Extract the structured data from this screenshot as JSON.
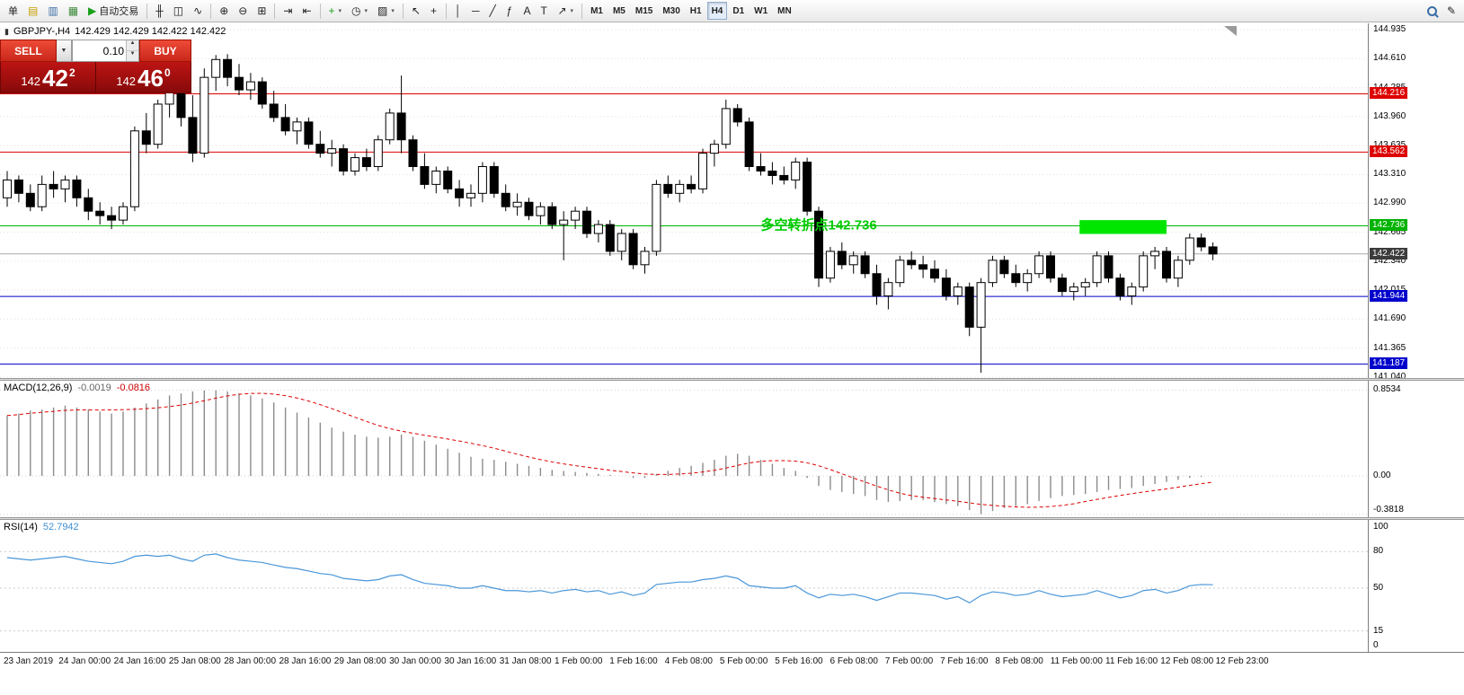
{
  "toolbar": {
    "items": [
      {
        "name": "new-order-button",
        "label": "单"
      },
      {
        "name": "market-watch-button",
        "glyph": "▤",
        "glyph_color": "#c8a000"
      },
      {
        "name": "data-window-button",
        "glyph": "▥",
        "glyph_color": "#3a6ea5"
      },
      {
        "name": "navigator-button",
        "glyph": "▦",
        "glyph_color": "#3a8a3a"
      },
      {
        "name": "autotrading-button",
        "glyph": "▶",
        "glyph_color": "#18a018",
        "label": "自动交易"
      },
      {
        "sep": true
      },
      {
        "name": "bar-chart-button",
        "glyph": "╫"
      },
      {
        "name": "candlestick-chart-button",
        "glyph": "◫"
      },
      {
        "name": "line-chart-button",
        "glyph": "∿"
      },
      {
        "sep": true
      },
      {
        "name": "zoom-in-button",
        "glyph": "⊕"
      },
      {
        "name": "zoom-out-button",
        "glyph": "⊖"
      },
      {
        "name": "tile-windows-button",
        "glyph": "⊞"
      },
      {
        "sep": true
      },
      {
        "name": "auto-scroll-button",
        "glyph": "⇥"
      },
      {
        "name": "chart-shift-button",
        "glyph": "⇤"
      },
      {
        "sep": true
      },
      {
        "name": "indicators-button",
        "glyph": "+",
        "glyph_color": "#18a018",
        "dropdown": true
      },
      {
        "name": "periods-button",
        "glyph": "◷",
        "dropdown": true
      },
      {
        "name": "templates-button",
        "glyph": "▨",
        "dropdown": true
      },
      {
        "sep": true
      },
      {
        "name": "cursor-button",
        "glyph": "↖"
      },
      {
        "name": "crosshair-button",
        "glyph": "+"
      },
      {
        "sep": true
      },
      {
        "name": "vertical-line-button",
        "glyph": "│"
      },
      {
        "name": "horizontal-line-button",
        "glyph": "─"
      },
      {
        "name": "trendline-button",
        "glyph": "╱"
      },
      {
        "name": "fibonacci-button",
        "glyph": "ƒ"
      },
      {
        "name": "text-button",
        "glyph": "A"
      },
      {
        "name": "label-button",
        "glyph": "T"
      },
      {
        "name": "arrows-button",
        "glyph": "↗",
        "dropdown": true
      },
      {
        "sep": true
      },
      {
        "name": "timeframe-m1-button",
        "label": "M1",
        "tf": true
      },
      {
        "name": "timeframe-m5-button",
        "label": "M5",
        "tf": true
      },
      {
        "name": "timeframe-m15-button",
        "label": "M15",
        "tf": true
      },
      {
        "name": "timeframe-m30-button",
        "label": "M30",
        "tf": true
      },
      {
        "name": "timeframe-h1-button",
        "label": "H1",
        "tf": true
      },
      {
        "name": "timeframe-h4-button",
        "label": "H4",
        "tf": true,
        "active": true
      },
      {
        "name": "timeframe-d1-button",
        "label": "D1",
        "tf": true
      },
      {
        "name": "timeframe-w1-button",
        "label": "W1",
        "tf": true
      },
      {
        "name": "timeframe-mn-button",
        "label": "MN",
        "tf": true
      },
      {
        "spacer": true
      },
      {
        "name": "search-button",
        "icon": "magnifier"
      },
      {
        "name": "edit-button",
        "glyph": "✎"
      }
    ]
  },
  "quote_line": {
    "icon": "▮",
    "symbol_period": "GBPJPY-,H4",
    "ohlc": "142.429 142.429 142.422 142.422"
  },
  "trade_panel": {
    "sell_label": "SELL",
    "buy_label": "BUY",
    "dropdown_icon": "▼",
    "lot_value": "0.10",
    "spin_up": "▲",
    "spin_down": "▼",
    "sell_price": {
      "prefix": "142",
      "big": "42",
      "sup": "2"
    },
    "buy_price": {
      "prefix": "142",
      "big": "46",
      "sup": "0"
    }
  },
  "macd_panel": {
    "title": "MACD(12,26,9)",
    "value_main": "-0.0019",
    "value_signal": "-0.0816"
  },
  "rsi_panel": {
    "title": "RSI(14)",
    "value": "52.7942"
  },
  "chart_data": {
    "type": "candlestick",
    "symbol": "GBPJPY-",
    "period": "H4",
    "price_range": {
      "min": 141.04,
      "max": 144.935
    },
    "price_ticks": [
      "144.935",
      "144.610",
      "144.285",
      "143.960",
      "143.635",
      "143.310",
      "142.990",
      "142.665",
      "142.340",
      "142.015",
      "141.690",
      "141.365",
      "141.040"
    ],
    "candles": [
      [
        143.05,
        143.35,
        142.95,
        143.25
      ],
      [
        143.25,
        143.3,
        143.0,
        143.1
      ],
      [
        143.1,
        143.2,
        142.9,
        142.95
      ],
      [
        142.95,
        143.3,
        142.9,
        143.2
      ],
      [
        143.2,
        143.35,
        143.05,
        143.15
      ],
      [
        143.15,
        143.3,
        143.0,
        143.25
      ],
      [
        143.25,
        143.3,
        142.95,
        143.05
      ],
      [
        143.05,
        143.15,
        142.8,
        142.9
      ],
      [
        142.9,
        143.0,
        142.75,
        142.85
      ],
      [
        142.85,
        142.95,
        142.7,
        142.8
      ],
      [
        142.8,
        143.0,
        142.75,
        142.95
      ],
      [
        142.95,
        143.85,
        142.9,
        143.8
      ],
      [
        143.8,
        144.0,
        143.55,
        143.65
      ],
      [
        143.65,
        144.15,
        143.6,
        144.1
      ],
      [
        144.1,
        144.3,
        143.95,
        144.25
      ],
      [
        144.25,
        144.45,
        143.85,
        143.95
      ],
      [
        143.95,
        144.2,
        143.45,
        143.55
      ],
      [
        143.55,
        144.5,
        143.5,
        144.4
      ],
      [
        144.4,
        144.65,
        144.25,
        144.6
      ],
      [
        144.6,
        144.66,
        144.3,
        144.4
      ],
      [
        144.4,
        144.55,
        144.2,
        144.26
      ],
      [
        144.26,
        144.45,
        144.15,
        144.35
      ],
      [
        144.35,
        144.4,
        144.05,
        144.1
      ],
      [
        144.1,
        144.25,
        143.9,
        143.95
      ],
      [
        143.95,
        144.1,
        143.75,
        143.8
      ],
      [
        143.8,
        143.95,
        143.65,
        143.9
      ],
      [
        143.9,
        143.95,
        143.6,
        143.65
      ],
      [
        143.65,
        143.8,
        143.5,
        143.55
      ],
      [
        143.55,
        143.7,
        143.4,
        143.6
      ],
      [
        143.6,
        143.65,
        143.3,
        143.35
      ],
      [
        143.35,
        143.55,
        143.3,
        143.5
      ],
      [
        143.5,
        143.6,
        143.35,
        143.4
      ],
      [
        143.4,
        143.75,
        143.35,
        143.7
      ],
      [
        143.7,
        144.05,
        143.65,
        144.0
      ],
      [
        144.0,
        144.42,
        143.55,
        143.7
      ],
      [
        143.7,
        143.75,
        143.35,
        143.4
      ],
      [
        143.4,
        143.55,
        143.15,
        143.2
      ],
      [
        143.2,
        143.4,
        143.1,
        143.35
      ],
      [
        143.35,
        143.4,
        143.1,
        143.15
      ],
      [
        143.15,
        143.25,
        142.95,
        143.05
      ],
      [
        143.05,
        143.2,
        142.95,
        143.1
      ],
      [
        143.1,
        143.45,
        143.0,
        143.4
      ],
      [
        143.4,
        143.45,
        143.05,
        143.1
      ],
      [
        143.1,
        143.2,
        142.9,
        142.95
      ],
      [
        142.95,
        143.1,
        142.85,
        143.0
      ],
      [
        143.0,
        143.05,
        142.8,
        142.85
      ],
      [
        142.85,
        143.0,
        142.75,
        142.95
      ],
      [
        142.95,
        143.0,
        142.7,
        142.75
      ],
      [
        142.75,
        142.9,
        142.35,
        142.8
      ],
      [
        142.8,
        142.95,
        142.7,
        142.9
      ],
      [
        142.9,
        142.95,
        142.6,
        142.65
      ],
      [
        142.65,
        142.8,
        142.55,
        142.75
      ],
      [
        142.75,
        142.8,
        142.4,
        142.45
      ],
      [
        142.45,
        142.7,
        142.35,
        142.65
      ],
      [
        142.65,
        142.7,
        142.25,
        142.3
      ],
      [
        142.3,
        142.5,
        142.2,
        142.45
      ],
      [
        142.45,
        143.25,
        142.4,
        143.2
      ],
      [
        143.2,
        143.3,
        143.05,
        143.1
      ],
      [
        143.1,
        143.25,
        143.0,
        143.2
      ],
      [
        143.2,
        143.3,
        143.1,
        143.15
      ],
      [
        143.15,
        143.6,
        143.1,
        143.55
      ],
      [
        143.55,
        143.7,
        143.4,
        143.65
      ],
      [
        143.65,
        144.15,
        143.6,
        144.05
      ],
      [
        144.05,
        144.1,
        143.85,
        143.9
      ],
      [
        143.9,
        143.95,
        143.35,
        143.4
      ],
      [
        143.4,
        143.55,
        143.3,
        143.35
      ],
      [
        143.35,
        143.45,
        143.2,
        143.3
      ],
      [
        143.3,
        143.4,
        143.2,
        143.25
      ],
      [
        143.25,
        143.5,
        143.15,
        143.45
      ],
      [
        143.45,
        143.5,
        142.85,
        142.9
      ],
      [
        142.9,
        142.95,
        142.05,
        142.15
      ],
      [
        142.15,
        142.5,
        142.1,
        142.45
      ],
      [
        142.45,
        142.55,
        142.25,
        142.3
      ],
      [
        142.3,
        142.45,
        142.2,
        142.4
      ],
      [
        142.4,
        142.45,
        142.15,
        142.2
      ],
      [
        142.2,
        142.3,
        141.85,
        141.95
      ],
      [
        141.95,
        142.15,
        141.8,
        142.1
      ],
      [
        142.1,
        142.4,
        142.05,
        142.35
      ],
      [
        142.35,
        142.45,
        142.25,
        142.3
      ],
      [
        142.3,
        142.4,
        142.15,
        142.25
      ],
      [
        142.25,
        142.35,
        142.1,
        142.15
      ],
      [
        142.15,
        142.25,
        141.9,
        141.95
      ],
      [
        141.95,
        142.1,
        141.85,
        142.05
      ],
      [
        142.05,
        142.1,
        141.5,
        141.6
      ],
      [
        141.6,
        142.15,
        141.09,
        142.1
      ],
      [
        142.1,
        142.4,
        142.05,
        142.35
      ],
      [
        142.35,
        142.4,
        142.15,
        142.2
      ],
      [
        142.2,
        142.3,
        142.05,
        142.1
      ],
      [
        142.1,
        142.25,
        142.0,
        142.2
      ],
      [
        142.2,
        142.45,
        142.15,
        142.4
      ],
      [
        142.4,
        142.45,
        142.1,
        142.15
      ],
      [
        142.15,
        142.2,
        141.95,
        142.0
      ],
      [
        142.0,
        142.1,
        141.9,
        142.05
      ],
      [
        142.05,
        142.15,
        141.95,
        142.1
      ],
      [
        142.1,
        142.45,
        142.05,
        142.4
      ],
      [
        142.4,
        142.45,
        142.1,
        142.15
      ],
      [
        142.15,
        142.2,
        141.9,
        141.95
      ],
      [
        141.95,
        142.1,
        141.85,
        142.05
      ],
      [
        142.05,
        142.45,
        142.0,
        142.4
      ],
      [
        142.4,
        142.5,
        142.25,
        142.45
      ],
      [
        142.45,
        142.5,
        142.1,
        142.15
      ],
      [
        142.15,
        142.4,
        142.05,
        142.35
      ],
      [
        142.35,
        142.65,
        142.3,
        142.6
      ],
      [
        142.6,
        142.65,
        142.45,
        142.5
      ],
      [
        142.5,
        142.55,
        142.35,
        142.42
      ]
    ],
    "hlines": [
      {
        "price": 144.216,
        "color": "#dd0000",
        "label": "144.216"
      },
      {
        "price": 143.562,
        "color": "#dd0000",
        "label": "143.562"
      },
      {
        "price": 142.736,
        "color": "#00b300",
        "label": "142.736"
      },
      {
        "price": 141.944,
        "color": "#0000cc",
        "label": "141.944"
      },
      {
        "price": 141.187,
        "color": "#0000cc",
        "label": "141.187"
      }
    ],
    "current_price": {
      "value": 142.422,
      "label": "142.422",
      "line_color": "#a8a8a8",
      "label_bg": "#3c3c3c"
    },
    "highlight_rect": {
      "start_index": 92.5,
      "end_index": 100,
      "price_top": 142.8,
      "price_bottom": 142.645,
      "color": "#00e600"
    },
    "annotation": {
      "text": "多空转折点142.736",
      "index": 65,
      "price": 142.745,
      "color": "#00cc00"
    },
    "macd": {
      "values": [
        0.6,
        0.62,
        0.65,
        0.66,
        0.68,
        0.7,
        0.68,
        0.66,
        0.64,
        0.62,
        0.64,
        0.68,
        0.72,
        0.76,
        0.8,
        0.82,
        0.84,
        0.85,
        0.85,
        0.84,
        0.82,
        0.8,
        0.77,
        0.73,
        0.68,
        0.63,
        0.58,
        0.53,
        0.48,
        0.44,
        0.41,
        0.39,
        0.38,
        0.39,
        0.41,
        0.39,
        0.35,
        0.31,
        0.27,
        0.23,
        0.19,
        0.17,
        0.16,
        0.14,
        0.12,
        0.1,
        0.08,
        0.06,
        0.05,
        0.04,
        0.03,
        0.02,
        0.01,
        0.0,
        -0.02,
        -0.02,
        0.02,
        0.05,
        0.08,
        0.1,
        0.13,
        0.16,
        0.2,
        0.22,
        0.2,
        0.16,
        0.12,
        0.08,
        0.05,
        -0.02,
        -0.1,
        -0.14,
        -0.16,
        -0.18,
        -0.2,
        -0.24,
        -0.26,
        -0.25,
        -0.24,
        -0.24,
        -0.26,
        -0.28,
        -0.3,
        -0.34,
        -0.38,
        -0.35,
        -0.32,
        -0.3,
        -0.28,
        -0.25,
        -0.22,
        -0.2,
        -0.19,
        -0.18,
        -0.16,
        -0.14,
        -0.13,
        -0.12,
        -0.1,
        -0.08,
        -0.06,
        -0.04,
        -0.02,
        -0.01,
        -0.0019
      ],
      "signal_period": 9,
      "levels": [
        0.8534,
        0,
        -0.3818
      ],
      "scale_labels": [
        "0.8534",
        "0.00",
        "-0.3818"
      ],
      "histogram_color": "#8c8c8c",
      "signal_color": "#dd0000"
    },
    "rsi": {
      "values": [
        75,
        74,
        73,
        74,
        75,
        76,
        74,
        72,
        71,
        70,
        72,
        76,
        77,
        76,
        77,
        74,
        72,
        77,
        78,
        75,
        73,
        72,
        71,
        69,
        67,
        66,
        64,
        62,
        61,
        58,
        57,
        56,
        57,
        60,
        61,
        57,
        54,
        53,
        52,
        50,
        50,
        52,
        50,
        48,
        48,
        47,
        48,
        46,
        48,
        49,
        47,
        48,
        45,
        47,
        44,
        46,
        53,
        54,
        55,
        55,
        57,
        58,
        60,
        58,
        52,
        51,
        50,
        50,
        52,
        46,
        42,
        45,
        44,
        45,
        43,
        40,
        43,
        46,
        46,
        45,
        44,
        41,
        43,
        38,
        44,
        47,
        46,
        44,
        45,
        48,
        45,
        43,
        44,
        45,
        48,
        45,
        42,
        44,
        48,
        49,
        46,
        48,
        52,
        53,
        52.79
      ],
      "levels": [
        80,
        50,
        15
      ],
      "scale_values": [
        100,
        80,
        50,
        15,
        0
      ],
      "scale_labels": [
        "100",
        "80",
        "50",
        "15",
        "0"
      ],
      "line_color": "#4a96d8"
    },
    "time_labels": [
      "23 Jan 2019",
      "24 Jan 00:00",
      "24 Jan 16:00",
      "25 Jan 08:00",
      "28 Jan 00:00",
      "28 Jan 16:00",
      "29 Jan 08:00",
      "30 Jan 00:00",
      "30 Jan 16:00",
      "31 Jan 08:00",
      "1 Feb 00:00",
      "1 Feb 16:00",
      "4 Feb 08:00",
      "5 Feb 00:00",
      "5 Feb 16:00",
      "6 Feb 08:00",
      "7 Feb 00:00",
      "7 Feb 16:00",
      "8 Feb 08:00",
      "11 Feb 00:00",
      "11 Feb 16:00",
      "12 Feb 08:00",
      "12 Feb 23:00"
    ]
  }
}
